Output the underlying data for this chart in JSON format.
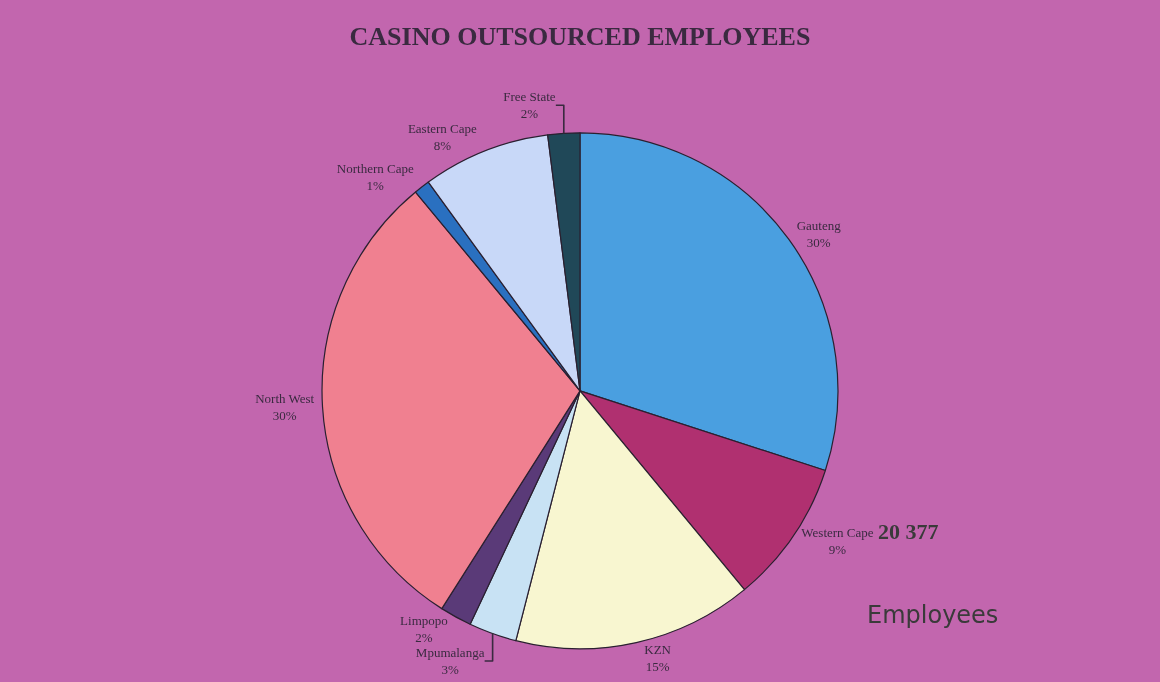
{
  "chart_data": {
    "type": "pie",
    "title": "CASINO OUTSOURCED EMPLOYEES",
    "categories": [
      "Gauteng",
      "Western Cape",
      "KZN",
      "Mpumalanga",
      "Limpopo",
      "North West",
      "Northern Cape",
      "Eastern Cape",
      "Free State"
    ],
    "values": [
      30,
      9,
      15,
      3,
      2,
      30,
      1,
      8,
      2
    ],
    "value_labels": [
      "30%",
      "9%",
      "15%",
      "3%",
      "2%",
      "30%",
      "1%",
      "8%",
      "2%"
    ],
    "colors": [
      "#4a9fe0",
      "#b03070",
      "#f8f6d0",
      "#c8e2f4",
      "#5a3a78",
      "#f08090",
      "#2a70c0",
      "#c8d8f8",
      "#204858"
    ],
    "annotations": [
      "20 377",
      "Employees"
    ],
    "legend": false
  }
}
